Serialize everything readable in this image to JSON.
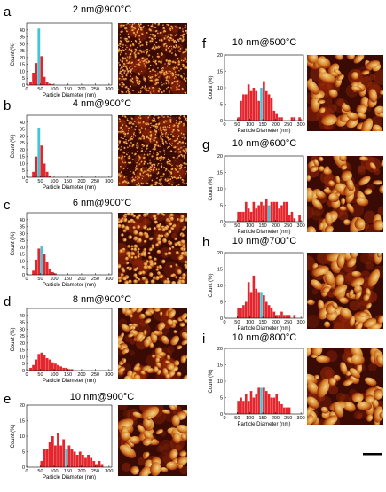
{
  "colors": {
    "bar": "#e3262d",
    "highlight": "#44c4d6",
    "afm_dark": "#3a0a04",
    "afm_mid": "#9b2a0a",
    "afm_light": "#f2d28c"
  },
  "chart_data": [
    {
      "panel": "a",
      "type": "bar",
      "title": "2 nm@900°C",
      "xlabel": "Particle Diameter (nm)",
      "ylabel": "Count (%)",
      "xlim": [
        0,
        310
      ],
      "ylim": [
        0,
        45
      ],
      "xticks": [
        0,
        50,
        100,
        150,
        200,
        250,
        300
      ],
      "yticks": [
        0,
        5,
        10,
        15,
        20,
        25,
        30,
        35,
        40
      ],
      "bin_width": 10,
      "x": [
        15,
        25,
        35,
        45,
        55,
        65,
        75,
        85,
        95
      ],
      "values": [
        2,
        9,
        16,
        41,
        21,
        6,
        2,
        1,
        0.5
      ],
      "highlight_x": 45,
      "afm_image": "small-particles"
    },
    {
      "panel": "b",
      "type": "bar",
      "title": "4 nm@900°C",
      "xlabel": "Particle Diameter (nm)",
      "ylabel": "Count (%)",
      "xlim": [
        0,
        310
      ],
      "ylim": [
        0,
        45
      ],
      "xticks": [
        0,
        50,
        100,
        150,
        200,
        250,
        300
      ],
      "yticks": [
        0,
        5,
        10,
        15,
        20,
        25,
        30,
        35,
        40
      ],
      "bin_width": 10,
      "x": [
        25,
        35,
        45,
        55,
        65,
        75,
        85
      ],
      "values": [
        4,
        15,
        36,
        23,
        10,
        4,
        1
      ],
      "highlight_x": 45,
      "afm_image": "small-particles"
    },
    {
      "panel": "c",
      "type": "bar",
      "title": "6 nm@900°C",
      "xlabel": "Particle Diameter (nm)",
      "ylabel": "Count (%)",
      "xlim": [
        0,
        310
      ],
      "ylim": [
        0,
        45
      ],
      "xticks": [
        0,
        50,
        100,
        150,
        200,
        250,
        300
      ],
      "yticks": [
        0,
        5,
        10,
        15,
        20,
        25,
        30,
        35,
        40
      ],
      "bin_width": 10,
      "x": [
        25,
        35,
        45,
        55,
        65,
        75,
        85,
        95,
        105
      ],
      "values": [
        3,
        11,
        19,
        21,
        15,
        9,
        4,
        2,
        1
      ],
      "highlight_x": 55,
      "afm_image": "round-particles"
    },
    {
      "panel": "d",
      "type": "bar",
      "title": "8 nm@900°C",
      "xlabel": "Particle Diameter (nm)",
      "ylabel": "Count (%)",
      "xlim": [
        0,
        310
      ],
      "ylim": [
        0,
        45
      ],
      "xticks": [
        0,
        50,
        100,
        150,
        200,
        250,
        300
      ],
      "yticks": [
        0,
        5,
        10,
        15,
        20,
        25,
        30,
        35,
        40
      ],
      "bin_width": 10,
      "x": [
        15,
        25,
        35,
        45,
        55,
        65,
        75,
        85,
        95,
        105,
        115,
        125,
        135,
        145,
        155,
        165
      ],
      "values": [
        2,
        4,
        8,
        12,
        13,
        11,
        9,
        8,
        6,
        5,
        4,
        3,
        2,
        2,
        1,
        1
      ],
      "highlight_x": 0,
      "afm_image": "medium-particles"
    },
    {
      "panel": "e",
      "type": "bar",
      "title": "10 nm@900°C",
      "xlabel": "Particle Diameter (nm)",
      "ylabel": "Count (%)",
      "xlim": [
        0,
        310
      ],
      "ylim": [
        0,
        20
      ],
      "xticks": [
        0,
        50,
        100,
        150,
        200,
        250,
        300
      ],
      "yticks": [
        0,
        5,
        10,
        15,
        20
      ],
      "bin_width": 10,
      "x": [
        55,
        65,
        75,
        85,
        95,
        105,
        115,
        125,
        135,
        145,
        155,
        165,
        175,
        185,
        195,
        205,
        215,
        225,
        235,
        245,
        255,
        265,
        275
      ],
      "values": [
        2,
        6,
        6,
        8,
        10,
        7,
        11,
        7,
        9,
        6,
        7,
        6,
        5,
        4,
        5,
        4,
        3,
        4,
        3,
        2,
        1,
        2,
        1
      ],
      "highlight_x": 145,
      "afm_image": "large-particles"
    },
    {
      "panel": "f",
      "type": "bar",
      "title": "10 nm@500°C",
      "xlabel": "Particle Diameter (nm)",
      "ylabel": "Count (%)",
      "xlim": [
        0,
        310
      ],
      "ylim": [
        0,
        20
      ],
      "xticks": [
        0,
        50,
        100,
        150,
        200,
        250,
        300
      ],
      "yticks": [
        0,
        5,
        10,
        15,
        20
      ],
      "bin_width": 10,
      "x": [
        55,
        65,
        75,
        85,
        95,
        105,
        115,
        125,
        135,
        145,
        155,
        165,
        175,
        185,
        195,
        205,
        215,
        225,
        235,
        245,
        255,
        265,
        275,
        285,
        295
      ],
      "values": [
        1,
        6,
        8,
        8,
        11,
        9,
        10,
        9,
        6,
        10,
        12,
        9,
        8,
        7,
        3,
        2,
        1,
        1,
        0,
        0,
        0,
        1,
        1,
        0,
        1
      ],
      "highlight_x": 145,
      "afm_image": "large-particles"
    },
    {
      "panel": "g",
      "type": "bar",
      "title": "10 nm@600°C",
      "xlabel": "Particle Diameter (nm)",
      "ylabel": "Count (%)",
      "xlim": [
        0,
        310
      ],
      "ylim": [
        0,
        20
      ],
      "xticks": [
        0,
        50,
        100,
        150,
        200,
        250,
        300
      ],
      "yticks": [
        0,
        5,
        10,
        15,
        20
      ],
      "bin_width": 10,
      "x": [
        55,
        65,
        75,
        85,
        95,
        105,
        115,
        125,
        135,
        145,
        155,
        165,
        175,
        185,
        195,
        205,
        215,
        225,
        235,
        245,
        255,
        265,
        275,
        285,
        295
      ],
      "values": [
        3,
        3,
        3,
        6,
        4,
        3,
        6,
        4,
        5,
        6,
        5,
        7,
        5,
        6,
        6,
        6,
        4,
        5,
        6,
        6,
        2,
        3,
        1,
        0,
        2
      ],
      "highlight_x": 175,
      "afm_image": "large-particles"
    },
    {
      "panel": "h",
      "type": "bar",
      "title": "10 nm@700°C",
      "xlabel": "Particle Diameter (nm)",
      "ylabel": "Count (%)",
      "xlim": [
        0,
        310
      ],
      "ylim": [
        0,
        20
      ],
      "xticks": [
        0,
        50,
        100,
        150,
        200,
        250,
        300
      ],
      "yticks": [
        0,
        5,
        10,
        15,
        20
      ],
      "bin_width": 10,
      "x": [
        55,
        65,
        75,
        85,
        95,
        105,
        115,
        125,
        135,
        145,
        155,
        165,
        175,
        185,
        195,
        205,
        215,
        225,
        235,
        245,
        255,
        265,
        275
      ],
      "values": [
        3,
        3,
        4,
        5,
        11,
        8,
        13,
        9,
        8,
        8,
        7,
        5,
        4,
        3,
        2,
        1,
        1,
        2,
        1,
        1,
        1,
        0,
        1
      ],
      "highlight_x": 145,
      "afm_image": "large-particles"
    },
    {
      "panel": "i",
      "type": "bar",
      "title": "10 nm@800°C",
      "xlabel": "Particle Diameter (nm)",
      "ylabel": "Count (%)",
      "xlim": [
        0,
        310
      ],
      "ylim": [
        0,
        20
      ],
      "xticks": [
        0,
        50,
        100,
        150,
        200,
        250,
        300
      ],
      "yticks": [
        0,
        5,
        10,
        15,
        20
      ],
      "bin_width": 10,
      "x": [
        55,
        65,
        75,
        85,
        95,
        105,
        115,
        125,
        135,
        145,
        155,
        165,
        175,
        185,
        195,
        205,
        215,
        225,
        235,
        245,
        255
      ],
      "values": [
        4,
        5,
        4,
        6,
        4,
        7,
        5,
        6,
        8,
        8,
        8,
        7,
        6,
        5,
        5,
        6,
        4,
        3,
        2,
        2,
        2
      ],
      "highlight_x": 145,
      "afm_image": "large-particles"
    }
  ]
}
